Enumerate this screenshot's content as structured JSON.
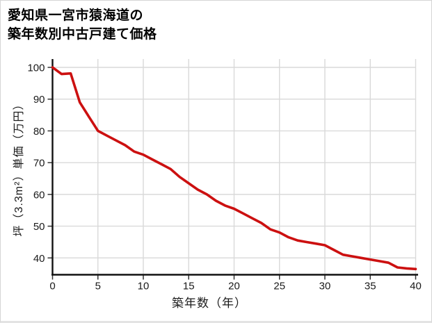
{
  "title": {
    "line1": "愛知県一宮市猿海道の",
    "line2": "築年数別中古戸建て価格"
  },
  "colors": {
    "line": "#cc1010",
    "grid": "#d9d9d9",
    "axis": "#111111",
    "tick": "#333333",
    "text": "#1a1a1a"
  },
  "chart_data": {
    "type": "line",
    "title": "愛知県一宮市猿海道の築年数別中古戸建て価格",
    "xlabel": "築年数（年）",
    "ylabel": "坪（3.3m²）単価（万円）",
    "series_name": "坪単価",
    "x": [
      0,
      1,
      2,
      3,
      4,
      5,
      6,
      7,
      8,
      9,
      10,
      11,
      12,
      13,
      14,
      15,
      16,
      17,
      18,
      19,
      20,
      21,
      22,
      23,
      24,
      25,
      26,
      27,
      28,
      29,
      30,
      31,
      32,
      33,
      34,
      35,
      36,
      37,
      38,
      39,
      40
    ],
    "values": [
      100,
      97.9,
      98.1,
      89,
      84.5,
      80,
      78.5,
      77,
      75.5,
      73.5,
      72.5,
      71,
      69.5,
      68,
      65.5,
      63.5,
      61.5,
      60,
      58,
      56.5,
      55.5,
      54,
      52.5,
      51,
      49,
      48,
      46.5,
      45.5,
      45,
      44.5,
      44,
      42.5,
      41,
      40.5,
      40,
      39.5,
      39,
      38.5,
      37,
      36.7,
      36.5
    ],
    "x_ticks": [
      0,
      5,
      10,
      15,
      20,
      25,
      30,
      35,
      40
    ],
    "y_ticks": [
      40,
      50,
      60,
      70,
      80,
      90,
      100
    ],
    "xlim": [
      0,
      40
    ],
    "ylim": [
      34,
      102.5
    ],
    "grid": true,
    "legend": "none"
  }
}
